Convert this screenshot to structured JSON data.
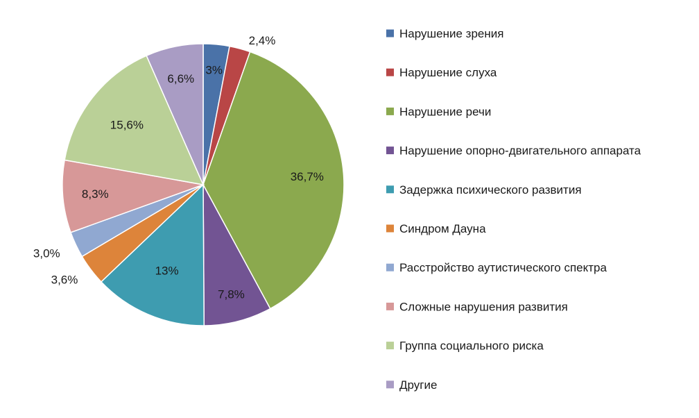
{
  "chart_data": {
    "type": "pie",
    "title": "",
    "legend_position": "right",
    "start_angle_deg": 0,
    "direction": "clockwise",
    "slices": [
      {
        "name": "Нарушение зрения",
        "value": 3.0,
        "label": "3%",
        "color": "#4a72a8"
      },
      {
        "name": "Нарушение слуха",
        "value": 2.4,
        "label": "2,4%",
        "color": "#b94646"
      },
      {
        "name": "Нарушение речи",
        "value": 36.7,
        "label": "36,7%",
        "color": "#8ba94e"
      },
      {
        "name": "Нарушение опорно-двигательного аппарата",
        "value": 7.8,
        "label": "7,8%",
        "color": "#725493"
      },
      {
        "name": "Задержка психического развития",
        "value": 13.0,
        "label": "13%",
        "color": "#3e9cb0"
      },
      {
        "name": "Синдром Дауна",
        "value": 3.6,
        "label": "3,6%",
        "color": "#dd843a"
      },
      {
        "name": "Расстройство аутистического спектра",
        "value": 3.0,
        "label": "3,0%",
        "color": "#90a8d1"
      },
      {
        "name": "Сложные нарушения развития",
        "value": 8.3,
        "label": "8,3%",
        "color": "#d79898"
      },
      {
        "name": "Группа социального риска",
        "value": 15.6,
        "label": "15,6%",
        "color": "#bad097"
      },
      {
        "name": "Другие",
        "value": 6.6,
        "label": "6,6%",
        "color": "#a99cc4"
      }
    ]
  }
}
